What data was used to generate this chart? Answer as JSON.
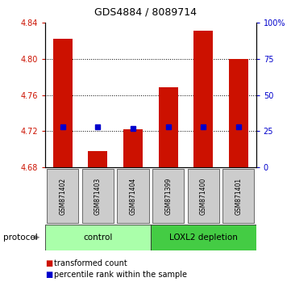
{
  "title": "GDS4884 / 8089714",
  "samples": [
    "GSM871402",
    "GSM871403",
    "GSM871404",
    "GSM871399",
    "GSM871400",
    "GSM871401"
  ],
  "bar_bottom": 4.68,
  "bar_tops": [
    4.822,
    4.698,
    4.722,
    4.769,
    4.831,
    4.8
  ],
  "percentile_ranks": [
    28,
    28,
    27,
    28,
    28,
    28
  ],
  "left_ylim": [
    4.68,
    4.84
  ],
  "right_ylim": [
    0,
    100
  ],
  "left_yticks": [
    4.68,
    4.72,
    4.76,
    4.8,
    4.84
  ],
  "right_yticks": [
    0,
    25,
    50,
    75,
    100
  ],
  "right_yticklabels": [
    "0",
    "25",
    "50",
    "75",
    "100%"
  ],
  "bar_color": "#cc1100",
  "blue_color": "#0000cc",
  "grid_values": [
    4.72,
    4.76,
    4.8
  ],
  "control_samples": 3,
  "control_color": "#aaffaa",
  "depletion_color": "#44cc44",
  "control_label": "control",
  "depletion_label": "LOXL2 depletion",
  "protocol_label": "protocol",
  "legend_red": "transformed count",
  "legend_blue": "percentile rank within the sample",
  "sample_bg_color": "#cccccc",
  "left_label_color": "#cc1100",
  "right_label_color": "#0000cc",
  "title_fontsize": 9,
  "tick_fontsize": 7,
  "sample_fontsize": 5.5,
  "proto_fontsize": 7.5,
  "legend_fontsize": 7
}
